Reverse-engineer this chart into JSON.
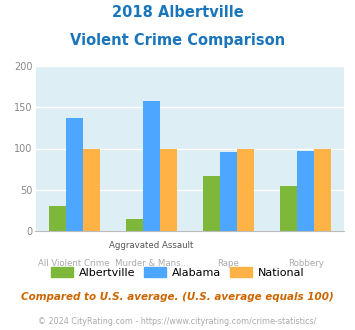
{
  "title_line1": "2018 Albertville",
  "title_line2": "Violent Crime Comparison",
  "cat_labels_top": [
    "",
    "Aggravated Assault",
    "",
    ""
  ],
  "cat_labels_bot": [
    "All Violent Crime",
    "Murder & Mans...",
    "Rape",
    "Robbery"
  ],
  "series": {
    "Albertville": [
      30,
      15,
      67,
      55
    ],
    "Alabama": [
      137,
      158,
      96,
      97
    ],
    "National": [
      100,
      100,
      100,
      100
    ]
  },
  "colors": {
    "Albertville": "#7db83a",
    "Alabama": "#4da6ff",
    "National": "#ffb347"
  },
  "ylim": [
    0,
    200
  ],
  "yticks": [
    0,
    50,
    100,
    150,
    200
  ],
  "plot_bg": "#ddeef5",
  "title_color": "#1a75bb",
  "subtitle_note": "Compared to U.S. average. (U.S. average equals 100)",
  "footer": "© 2024 CityRating.com - https://www.cityrating.com/crime-statistics/",
  "subtitle_color": "#cc6600",
  "footer_color": "#aaaaaa",
  "footer_link_color": "#4da6ff",
  "grid_color": "#ffffff"
}
